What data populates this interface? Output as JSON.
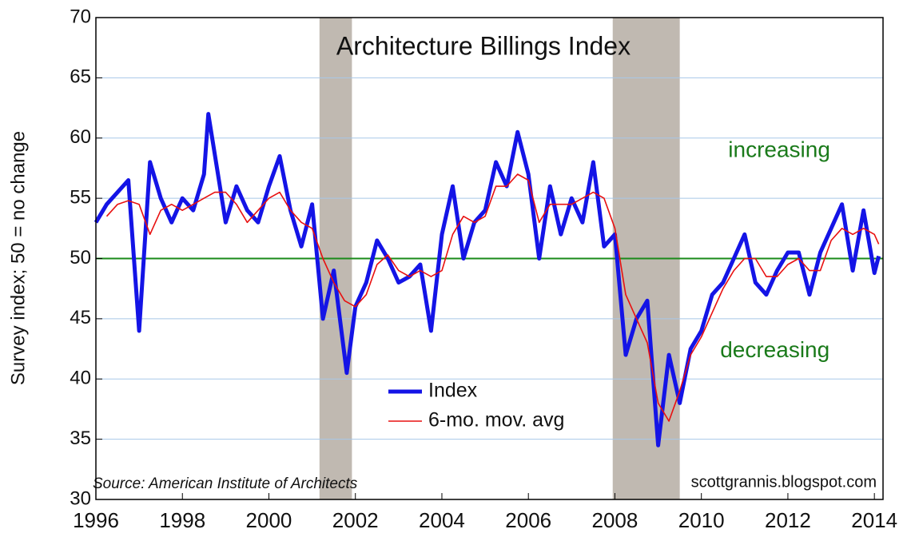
{
  "chart_data": {
    "type": "line",
    "title": "Architecture Billings Index",
    "y_label": "Survey index; 50 = no change",
    "source": "Source: American Institute of Architects",
    "credit": "scottgrannis.blogspot.com",
    "annotations": [
      {
        "text": "increasing",
        "x": 2011.8,
        "y": 58.9,
        "color": "#1a7a1a"
      },
      {
        "text": "decreasing",
        "x": 2011.7,
        "y": 42.3,
        "color": "#1a7a1a"
      }
    ],
    "reference_line": {
      "y": 50,
      "color": "#1a8a1a"
    },
    "shaded_periods": [
      [
        2001.17,
        2001.92
      ],
      [
        2007.95,
        2009.5
      ]
    ],
    "xlim": [
      1996,
      2014.2
    ],
    "xticks": [
      1996,
      1998,
      2000,
      2002,
      2004,
      2006,
      2008,
      2010,
      2012,
      2014
    ],
    "ylim": [
      30,
      70
    ],
    "yticks": [
      30,
      35,
      40,
      45,
      50,
      55,
      60,
      65,
      70
    ],
    "grid": true,
    "series": [
      {
        "name": "Index",
        "color": "#1414e6",
        "width": 5,
        "x": [
          1996,
          1996.25,
          1996.5,
          1996.75,
          1997,
          1997.25,
          1997.5,
          1997.75,
          1998,
          1998.25,
          1998.5,
          1998.6,
          1999,
          1999.25,
          1999.5,
          1999.75,
          2000,
          2000.25,
          2000.5,
          2000.75,
          2001,
          2001.25,
          2001.5,
          2001.8,
          2002,
          2002.25,
          2002.5,
          2002.75,
          2003,
          2003.25,
          2003.5,
          2003.75,
          2004,
          2004.25,
          2004.5,
          2004.75,
          2005,
          2005.25,
          2005.5,
          2005.75,
          2006,
          2006.25,
          2006.5,
          2006.75,
          2007,
          2007.25,
          2007.5,
          2007.75,
          2008,
          2008.25,
          2008.5,
          2008.75,
          2009,
          2009.25,
          2009.5,
          2009.75,
          2010,
          2010.25,
          2010.5,
          2010.75,
          2011,
          2011.25,
          2011.5,
          2011.75,
          2012,
          2012.25,
          2012.5,
          2012.75,
          2013,
          2013.25,
          2013.5,
          2013.75,
          2014,
          2014.1
        ],
        "values": [
          53,
          54.5,
          55.5,
          56.5,
          44,
          58,
          55,
          53,
          55,
          54,
          57,
          62,
          53,
          56,
          54,
          53,
          56,
          58.5,
          54,
          51,
          54.5,
          45,
          49,
          40.5,
          46,
          48,
          51.5,
          50,
          48,
          48.5,
          49.5,
          44,
          52,
          56,
          50,
          53,
          54,
          58,
          56,
          60.5,
          57,
          50,
          56,
          52,
          55,
          53,
          58,
          51,
          52,
          42,
          45,
          46.5,
          34.5,
          42,
          38,
          42.5,
          44,
          47,
          48,
          50,
          52,
          48,
          47,
          49,
          50.5,
          50.5,
          47,
          50.5,
          52.5,
          54.5,
          49,
          54,
          48.8,
          50.2
        ]
      },
      {
        "name": "6-mo. mov. avg",
        "color": "#e81010",
        "width": 1.6,
        "x": [
          1996.25,
          1996.5,
          1996.75,
          1997,
          1997.25,
          1997.5,
          1997.75,
          1998,
          1998.25,
          1998.5,
          1998.75,
          1999,
          1999.25,
          1999.5,
          1999.75,
          2000,
          2000.25,
          2000.5,
          2000.75,
          2001,
          2001.25,
          2001.5,
          2001.75,
          2002,
          2002.25,
          2002.5,
          2002.75,
          2003,
          2003.25,
          2003.5,
          2003.75,
          2004,
          2004.25,
          2004.5,
          2004.75,
          2005,
          2005.25,
          2005.5,
          2005.75,
          2006,
          2006.25,
          2006.5,
          2006.75,
          2007,
          2007.25,
          2007.5,
          2007.75,
          2008,
          2008.25,
          2008.5,
          2008.75,
          2009,
          2009.25,
          2009.5,
          2009.75,
          2010,
          2010.25,
          2010.5,
          2010.75,
          2011,
          2011.25,
          2011.5,
          2011.75,
          2012,
          2012.25,
          2012.5,
          2012.75,
          2013,
          2013.25,
          2013.5,
          2013.75,
          2014,
          2014.1
        ],
        "values": [
          53.5,
          54.5,
          54.8,
          54.5,
          52,
          54,
          54.5,
          54,
          54.5,
          55,
          55.5,
          55.5,
          54.5,
          53,
          54,
          55,
          55.5,
          54,
          53,
          52.5,
          50,
          48,
          46.5,
          46,
          47,
          49.5,
          50.3,
          49,
          48.5,
          49,
          48.5,
          49,
          52,
          53.5,
          53,
          53.5,
          56,
          56,
          57,
          56.5,
          53,
          54.5,
          54.5,
          54.5,
          55,
          55.5,
          55,
          52.5,
          47,
          45,
          43,
          38,
          36.5,
          39,
          42,
          43.5,
          45.5,
          47.5,
          49,
          50,
          50,
          48.5,
          48.5,
          49.5,
          50,
          49,
          49,
          51.5,
          52.5,
          52,
          52.5,
          52,
          51.2
        ]
      }
    ]
  }
}
